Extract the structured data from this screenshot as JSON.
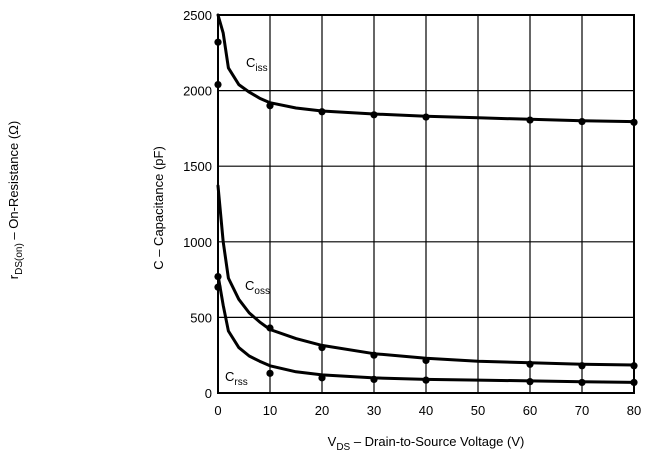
{
  "chart_data": {
    "type": "line",
    "xlabel": {
      "main": "V",
      "sub": "DS",
      "rest": " – Drain-to-Source Voltage (V)"
    },
    "ylabel": "C – Capacitance (pF)",
    "secondary_label": {
      "main": "r",
      "sub": "DS(on)",
      "rest": " – On-Resistance (Ω)"
    },
    "xlim": [
      0,
      80
    ],
    "ylim": [
      0,
      2500
    ],
    "xticks": [
      0,
      10,
      20,
      30,
      40,
      50,
      60,
      70,
      80
    ],
    "yticks": [
      0,
      500,
      1000,
      1500,
      2000,
      2500
    ],
    "grid": true,
    "series": [
      {
        "name": "Ciss",
        "label": {
          "main": "C",
          "sub": "iss"
        },
        "line": [
          [
            0,
            2500
          ],
          [
            1,
            2380
          ],
          [
            2,
            2150
          ],
          [
            4,
            2040
          ],
          [
            6,
            1990
          ],
          [
            8,
            1950
          ],
          [
            10,
            1920
          ],
          [
            15,
            1885
          ],
          [
            20,
            1865
          ],
          [
            30,
            1845
          ],
          [
            40,
            1830
          ],
          [
            50,
            1820
          ],
          [
            60,
            1810
          ],
          [
            70,
            1800
          ],
          [
            80,
            1795
          ]
        ],
        "points": [
          [
            0,
            2320
          ],
          [
            0,
            2040
          ],
          [
            10,
            1900
          ],
          [
            20,
            1860
          ],
          [
            30,
            1840
          ],
          [
            40,
            1825
          ],
          [
            60,
            1805
          ],
          [
            70,
            1795
          ],
          [
            80,
            1790
          ]
        ]
      },
      {
        "name": "Coss",
        "label": {
          "main": "C",
          "sub": "oss"
        },
        "line": [
          [
            0,
            1370
          ],
          [
            1,
            1000
          ],
          [
            2,
            760
          ],
          [
            4,
            620
          ],
          [
            6,
            530
          ],
          [
            8,
            470
          ],
          [
            10,
            420
          ],
          [
            15,
            360
          ],
          [
            20,
            315
          ],
          [
            30,
            260
          ],
          [
            40,
            230
          ],
          [
            50,
            210
          ],
          [
            60,
            200
          ],
          [
            70,
            190
          ],
          [
            80,
            185
          ]
        ],
        "points": [
          [
            0,
            770
          ],
          [
            10,
            430
          ],
          [
            20,
            300
          ],
          [
            30,
            250
          ],
          [
            40,
            215
          ],
          [
            60,
            190
          ],
          [
            70,
            180
          ],
          [
            80,
            180
          ]
        ]
      },
      {
        "name": "Crss",
        "label": {
          "main": "C",
          "sub": "rss"
        },
        "line": [
          [
            0,
            780
          ],
          [
            1,
            580
          ],
          [
            2,
            410
          ],
          [
            4,
            300
          ],
          [
            6,
            245
          ],
          [
            8,
            210
          ],
          [
            10,
            180
          ],
          [
            15,
            140
          ],
          [
            20,
            120
          ],
          [
            30,
            100
          ],
          [
            40,
            90
          ],
          [
            50,
            85
          ],
          [
            60,
            80
          ],
          [
            70,
            75
          ],
          [
            80,
            70
          ]
        ],
        "points": [
          [
            0,
            700
          ],
          [
            10,
            130
          ],
          [
            20,
            100
          ],
          [
            30,
            90
          ],
          [
            40,
            85
          ],
          [
            60,
            75
          ],
          [
            70,
            70
          ],
          [
            80,
            70
          ]
        ]
      }
    ]
  }
}
